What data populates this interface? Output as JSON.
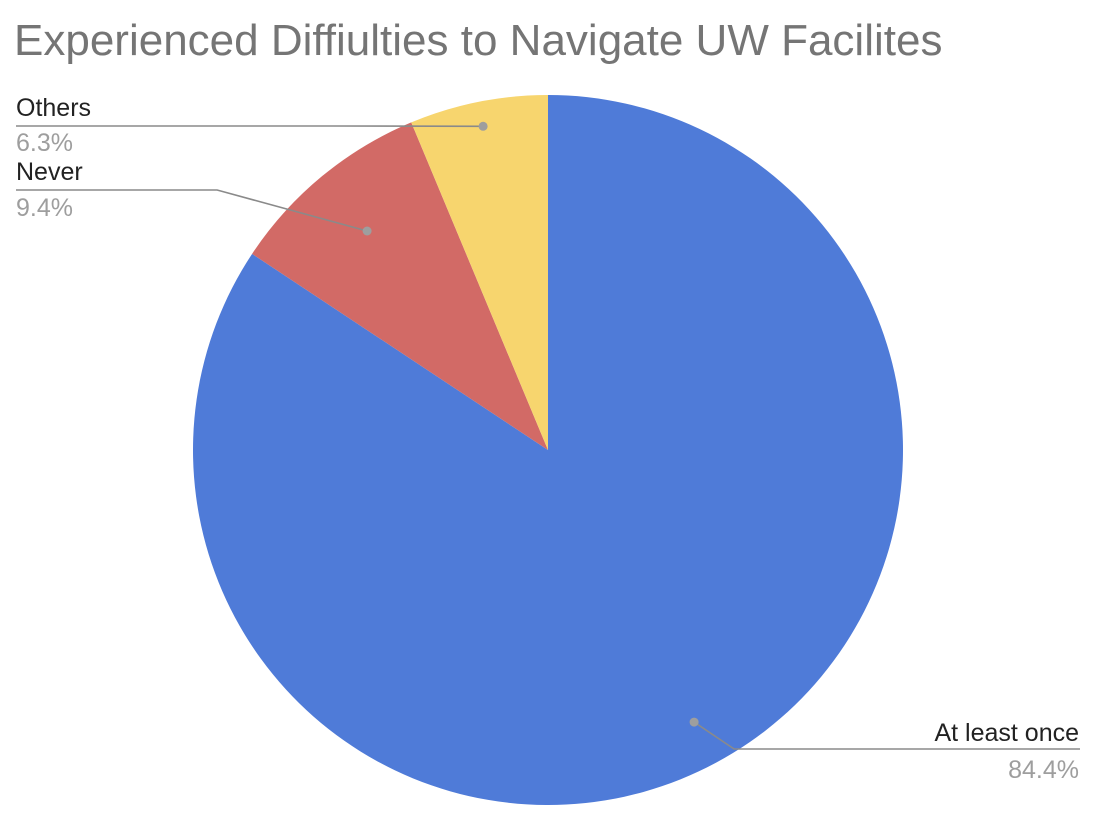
{
  "chart_data": {
    "type": "pie",
    "title": "Experienced Diffiulties to Navigate UW Facilites",
    "slices": [
      {
        "name": "At least once",
        "value": 84.4,
        "value_label": "84.4%",
        "color": "#4f7bd8"
      },
      {
        "name": "Never",
        "value": 9.4,
        "value_label": "9.4%",
        "color": "#d26a66"
      },
      {
        "name": "Others",
        "value": 6.3,
        "value_label": "6.3%",
        "color": "#f7d56e"
      }
    ],
    "start_angle": "12 o'clock",
    "direction": "clockwise",
    "legend": "none",
    "label_style": "callout",
    "leader_color": "#8a8a8a"
  }
}
